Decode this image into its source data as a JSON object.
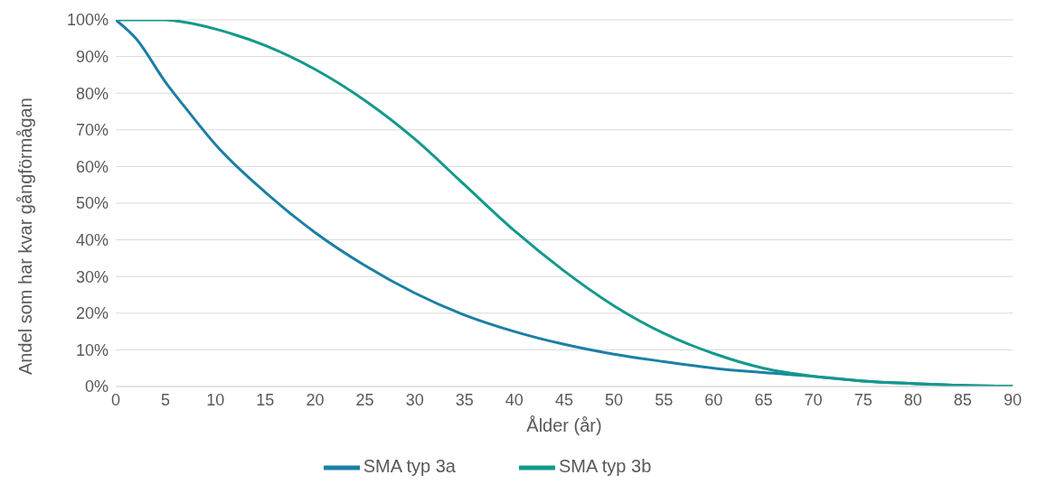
{
  "chart_data": {
    "type": "line",
    "xlabel": "Ålder (år)",
    "ylabel": "Andel som har kvar gångförmågan",
    "x": [
      0,
      2,
      5,
      7,
      10,
      15,
      20,
      25,
      30,
      35,
      40,
      45,
      50,
      55,
      60,
      65,
      70,
      75,
      80,
      85,
      90
    ],
    "series": [
      {
        "name": "SMA typ 3a",
        "color": "#1b7fa6",
        "values": [
          100,
          95,
          83,
          76,
          66,
          53,
          42,
          33,
          25.5,
          19.5,
          15,
          11.5,
          8.8,
          6.8,
          5,
          3.8,
          2.8,
          1.5,
          0.8,
          0.3,
          0.1
        ]
      },
      {
        "name": "SMA typ 3b",
        "color": "#12998c",
        "values": [
          100,
          100,
          100,
          99.3,
          97.5,
          93,
          86.5,
          78,
          67.5,
          55,
          42.5,
          31.5,
          22,
          14.5,
          9,
          5,
          2.8,
          1.5,
          0.8,
          0.3,
          0.1
        ]
      }
    ],
    "xlim": [
      0,
      90
    ],
    "xticks": [
      0,
      5,
      10,
      15,
      20,
      25,
      30,
      35,
      40,
      45,
      50,
      55,
      60,
      65,
      70,
      75,
      80,
      85,
      90
    ],
    "ylim": [
      0,
      100
    ],
    "yticks": [
      {
        "value": 0,
        "label": "0%"
      },
      {
        "value": 10,
        "label": "10%"
      },
      {
        "value": 20,
        "label": "20%"
      },
      {
        "value": 30,
        "label": "30%"
      },
      {
        "value": 40,
        "label": "40%"
      },
      {
        "value": 50,
        "label": "50%"
      },
      {
        "value": 60,
        "label": "60%"
      },
      {
        "value": 70,
        "label": "70%"
      },
      {
        "value": 80,
        "label": "80%"
      },
      {
        "value": 90,
        "label": "90%"
      },
      {
        "value": 100,
        "label": "100%"
      }
    ],
    "grid": "y",
    "legend": "bottom",
    "marker": "none",
    "line_style": "solid"
  }
}
